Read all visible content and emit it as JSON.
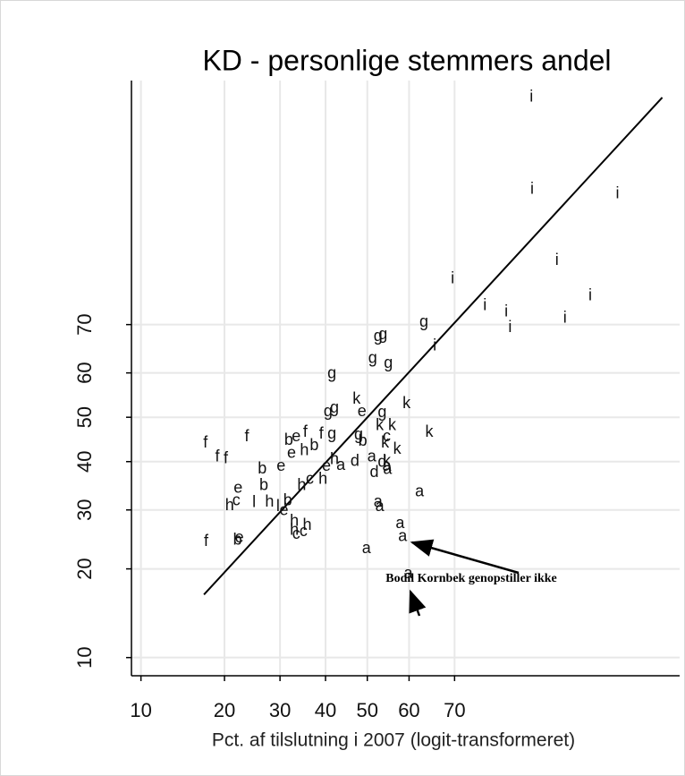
{
  "chart_data": {
    "type": "scatter",
    "title": "KD - personlige stemmers andel",
    "x_label": "Pct. af tilslutning i 2007 (logit-transformeret)",
    "annotation": "Bodil Kornbek genopstiller ikke",
    "xscale": "logit",
    "yscale": "logit",
    "xlim": [
      9.2,
      95.4
    ],
    "ylim": [
      8.6,
      95.6
    ],
    "xticks": [
      10,
      20,
      30,
      40,
      50,
      60,
      70
    ],
    "yticks": [
      10,
      20,
      30,
      40,
      50,
      60,
      70
    ],
    "grid": true,
    "color": "#000000",
    "fit_line": {
      "x": [
        17.0,
        94.6
      ],
      "y": [
        16.5,
        94.9
      ]
    },
    "series": [
      {
        "name": "i",
        "x": [
          83.1,
          83.2,
          91.9,
          86.3,
          69.6,
          89.7,
          75.8,
          79.4,
          80.0,
          87.2,
          65.8
        ],
        "y": [
          94.9,
          88.9,
          88.5,
          80.7,
          78.0,
          75.2,
          73.5,
          72.3,
          69.4,
          71.2,
          65.7
        ]
      },
      {
        "name": "g",
        "x": [
          63.4,
          52.6,
          53.8,
          51.3,
          55.1,
          41.5,
          42.1,
          40.6,
          47.9,
          53.6,
          41.5
        ],
        "y": [
          70.4,
          67.6,
          68.0,
          63.1,
          62.0,
          59.8,
          52.0,
          51.2,
          45.9,
          51.0,
          46.1
        ]
      },
      {
        "name": "k",
        "x": [
          47.4,
          59.4,
          56.0,
          64.6,
          53.0,
          54.3,
          57.2,
          54.7
        ],
        "y": [
          54.1,
          53.1,
          48.0,
          46.5,
          48.0,
          44.1,
          42.7,
          40.0
        ]
      },
      {
        "name": "e",
        "x": [
          48.7,
          33.4,
          32.4,
          30.2,
          22.2,
          30.8,
          40.2,
          22.4
        ],
        "y": [
          51.2,
          45.5,
          41.8,
          38.9,
          34.3,
          29.8,
          38.9,
          24.9
        ]
      },
      {
        "name": "f",
        "x": [
          17.2,
          23.7,
          18.9,
          20.2,
          35.4,
          17.3,
          39.0
        ],
        "y": [
          44.1,
          45.5,
          41.0,
          40.6,
          46.5,
          24.3,
          46.1
        ]
      },
      {
        "name": "b",
        "x": [
          31.8,
          37.4,
          26.5,
          26.8,
          31.6,
          48.9,
          22.1
        ],
        "y": [
          44.7,
          43.5,
          38.3,
          34.8,
          31.7,
          44.5,
          24.5
        ]
      },
      {
        "name": "h",
        "x": [
          35.2,
          42.1,
          27.9,
          39.4,
          34.6,
          33.0,
          35.8,
          33.0,
          20.8
        ],
        "y": [
          42.4,
          40.4,
          31.5,
          36.1,
          34.8,
          27.8,
          27.1,
          26.2,
          30.8
        ]
      },
      {
        "name": "c",
        "x": [
          21.9,
          36.4,
          35.0,
          54.7,
          33.4
        ],
        "y": [
          31.7,
          36.1,
          26.0,
          45.5,
          25.5
        ]
      },
      {
        "name": "d",
        "x": [
          53.6,
          47.0,
          51.7
        ],
        "y": [
          39.8,
          40.0,
          37.6
        ]
      },
      {
        "name": "a",
        "x": [
          43.6,
          51.1,
          54.7,
          54.9,
          62.4,
          52.6,
          53.0,
          57.9,
          58.5,
          49.8,
          59.8
        ],
        "y": [
          39.1,
          41.0,
          38.9,
          38.2,
          33.5,
          31.5,
          30.6,
          27.4,
          25.1,
          23.1,
          19.3
        ]
      },
      {
        "name": "l",
        "x": [
          25.0,
          29.6
        ],
        "y": [
          31.4,
          30.6
        ]
      }
    ]
  }
}
